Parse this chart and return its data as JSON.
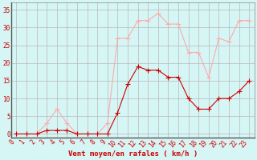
{
  "x": [
    0,
    1,
    2,
    3,
    4,
    5,
    6,
    7,
    8,
    9,
    10,
    11,
    12,
    13,
    14,
    15,
    16,
    17,
    18,
    19,
    20,
    21,
    22,
    23
  ],
  "wind_avg": [
    0,
    0,
    0,
    1,
    1,
    1,
    0,
    0,
    0,
    0,
    6,
    14,
    19,
    18,
    18,
    16,
    16,
    10,
    7,
    7,
    10,
    10,
    12,
    15
  ],
  "wind_gust": [
    0,
    0,
    0,
    3,
    7,
    3,
    0,
    0,
    0,
    3,
    27,
    27,
    32,
    32,
    34,
    31,
    31,
    23,
    23,
    16,
    27,
    26,
    32,
    32
  ],
  "color_avg": "#cc0000",
  "color_gust": "#ffaaaa",
  "bg_color": "#d6f5f5",
  "grid_color": "#b8b8b8",
  "xlabel": "Vent moyen/en rafales ( km/h )",
  "xlabel_color": "#cc0000",
  "tick_color": "#cc0000",
  "yticks": [
    0,
    5,
    10,
    15,
    20,
    25,
    30,
    35
  ],
  "ylim": [
    -1,
    37
  ],
  "xlim": [
    -0.5,
    23.5
  ]
}
